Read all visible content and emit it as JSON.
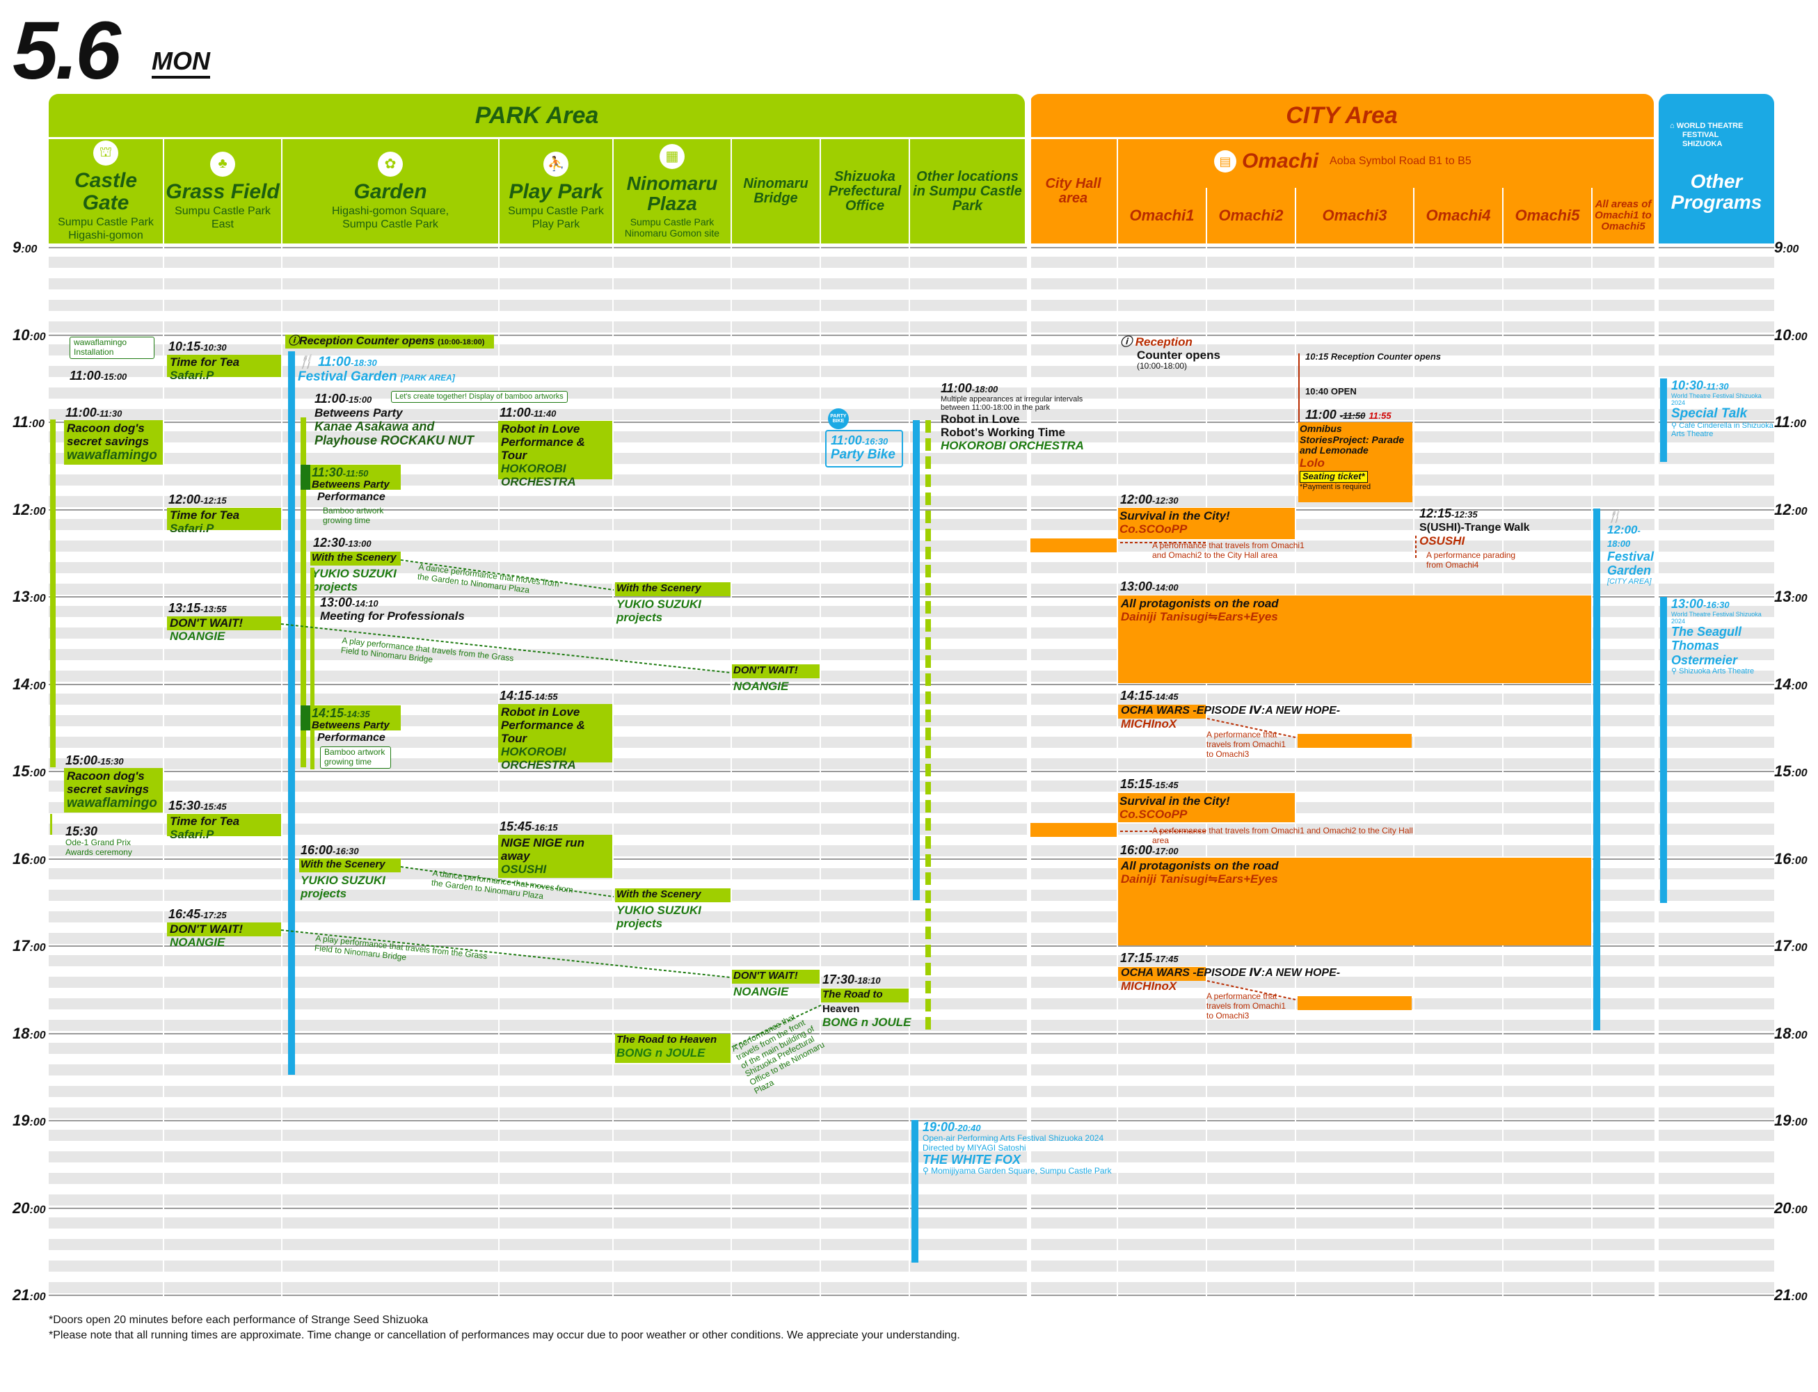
{
  "date": {
    "day": "5.6",
    "dow": "MON"
  },
  "areas": {
    "park": "PARK Area",
    "city": "CITY Area",
    "other": "Other Programs"
  },
  "logo": {
    "line1": "WORLD THEATRE",
    "line2": "FESTIVAL",
    "line3": "SHIZUOKA"
  },
  "columns": {
    "castle_gate": {
      "name": "Castle Gate",
      "sub1": "Sumpu Castle Park",
      "sub2": "Higashi-gomon"
    },
    "grass_field": {
      "name": "Grass Field",
      "sub1": "Sumpu Castle Park",
      "sub2": "East"
    },
    "garden": {
      "name": "Garden",
      "sub1": "Higashi-gomon Square,",
      "sub2": "Sumpu Castle Park"
    },
    "play_park": {
      "name": "Play Park",
      "sub1": "Sumpu Castle Park",
      "sub2": "Play Park"
    },
    "ninomaru_plaza": {
      "name": "Ninomaru Plaza",
      "sub1": "Sumpu Castle Park",
      "sub2": "Ninomaru Gomon site"
    },
    "ninomaru_bridge": {
      "name": "Ninomaru Bridge"
    },
    "pref_office": {
      "name": "Shizuoka Prefectural Office"
    },
    "other_locations": {
      "name": "Other locations in Sumpu Castle Park"
    },
    "city_hall": {
      "name": "City Hall area"
    },
    "omachi": {
      "name": "Omachi",
      "sub": "Aoba Symbol Road B1 to B5"
    },
    "omachi1": "Omachi1",
    "omachi2": "Omachi2",
    "omachi3": "Omachi3",
    "omachi4": "Omachi4",
    "omachi5": "Omachi5",
    "omachi_all": "All areas of Omachi1 to Omachi5"
  },
  "hours": [
    "9:00",
    "10:00",
    "11:00",
    "12:00",
    "13:00",
    "14:00",
    "15:00",
    "16:00",
    "17:00",
    "18:00",
    "19:00",
    "20:00",
    "21:00"
  ],
  "events": {
    "cg1": {
      "time": "11:00",
      "end": "-15:00",
      "note": "wawaflamingo Installation"
    },
    "cg2": {
      "time": "11:00",
      "end": "-11:30",
      "title": "Racoon dog's secret savings",
      "company": "wawaflamingo"
    },
    "cg3": {
      "time": "15:00",
      "end": "-15:30",
      "title": "Racoon dog's secret savings",
      "company": "wawaflamingo"
    },
    "cg4": {
      "time": "15:30",
      "note": "Ode-1 Grand Prix Awards ceremony"
    },
    "gf1": {
      "time": "10:15",
      "end": "-10:30",
      "title": "Time for Tea",
      "company": "Safari.P"
    },
    "gf2": {
      "time": "12:00",
      "end": "-12:15",
      "title": "Time for Tea",
      "company": "Safari.P"
    },
    "gf3": {
      "time": "13:15",
      "end": "-13:55",
      "title": "DON'T WAIT!",
      "company": "NOANGIE"
    },
    "gf4": {
      "time": "15:30",
      "end": "-15:45",
      "title": "Time for Tea",
      "company": "Safari.P"
    },
    "gf5": {
      "time": "16:45",
      "end": "-17:25",
      "title": "DON'T WAIT!",
      "company": "NOANGIE"
    },
    "gd_reception": {
      "title": "Reception Counter opens",
      "hours": "(10:00-18:00)"
    },
    "gd_festival": {
      "time": "11:00",
      "end": "-18:30",
      "title": "Festival Garden",
      "tag": "[PARK AREA]"
    },
    "gd_betweens": {
      "time": "11:00",
      "end": "-15:00",
      "note": "Let's create together! Display of bamboo artworks",
      "title": "Betweens Party",
      "company": "Kanae Asakawa and Playhouse ROCKAKU NUT"
    },
    "gd_perf1": {
      "time": "11:30",
      "end": "-11:50",
      "title": "Betweens Party",
      "sub": "Performance",
      "note": "Bamboo artwork growing time"
    },
    "gd_scenery1": {
      "time": "12:30",
      "end": "-13:00",
      "title": "With the Scenery",
      "company": "YUKIO SUZUKI projects"
    },
    "gd_meeting": {
      "time": "13:00",
      "end": "-14:10",
      "title": "Meeting for Professionals"
    },
    "gd_perf2": {
      "time": "14:15",
      "end": "-14:35",
      "title": "Betweens Party",
      "sub": "Performance",
      "note": "Bamboo artwork growing time"
    },
    "gd_scenery2": {
      "time": "16:00",
      "end": "-16:30",
      "title": "With the Scenery",
      "company": "YUKIO SUZUKI projects"
    },
    "pp1": {
      "time": "11:00",
      "end": "-11:40",
      "title": "Robot in Love Performance & Tour",
      "company": "HOKOROBI ORCHESTRA"
    },
    "pp2": {
      "time": "14:15",
      "end": "-14:55",
      "title": "Robot in Love Performance & Tour",
      "company": "HOKOROBI ORCHESTRA"
    },
    "pp3": {
      "time": "15:45",
      "end": "-16:15",
      "title": "NIGE NIGE run away",
      "company": "OSUSHI"
    },
    "np1": {
      "title": "With the Scenery",
      "company": "YUKIO SUZUKI projects"
    },
    "np2": {
      "title": "With the Scenery",
      "company": "YUKIO SUZUKI projects"
    },
    "np3": {
      "title": "The Road to Heaven",
      "company": "BONG n JOULE"
    },
    "nb1": {
      "title": "DON'T WAIT!",
      "company": "NOANGIE"
    },
    "nb2": {
      "title": "DON'T WAIT!",
      "company": "NOANGIE"
    },
    "po_party": {
      "badge": "PARTY BIKE",
      "time": "11:00",
      "end": "-16:30",
      "title": "Party Bike"
    },
    "po_road": {
      "time": "17:30",
      "end": "-18:10",
      "title": "The Road to",
      "title2": "Heaven",
      "company": "BONG n JOULE"
    },
    "ol_robot": {
      "time": "11:00",
      "end": "-18:00",
      "note": "Multiple appearances at irregular intervals between 11:00-18:00 in the park",
      "title": "Robot in Love",
      "title2": "Robot's Working Time",
      "company": "HOKOROBI ORCHESTRA"
    },
    "ol_fox": {
      "time": "19:00",
      "end": "-20:40",
      "note1": "Open-air Performing Arts Festival Shizuoka 2024",
      "note2": "Directed by MIYAGI Satoshi",
      "title": "THE WHITE FOX",
      "place": "Momijiyama Garden Square, Sumpu Castle Park"
    },
    "om_reception": {
      "title": "Reception",
      "title2": "Counter opens",
      "hours": "(10:00-18:00)"
    },
    "om3_1015": {
      "text": "10:15 Reception Counter opens"
    },
    "om3_1040": {
      "text": "10:40 OPEN"
    },
    "om3_omni": {
      "time": "11:00",
      "old_end": "-11:50",
      "new_end": "11:55",
      "title": "Omnibus StoriesProject: Parade and Lemonade",
      "company": "Lolo",
      "ticket": "Seating ticket*",
      "note": "*Payment is required"
    },
    "om_surv1": {
      "time": "12:00",
      "end": "-12:30",
      "title": "Survival in the City!",
      "company": "Co.SCOoPP",
      "note": "A performance that travels from Omachi1 and Omachi2 to the City Hall area"
    },
    "om_ushi": {
      "time": "12:15",
      "end": "-12:35",
      "title": "S(USHI)-Trange Walk",
      "company": "OSUSHI",
      "note": "A performance parading from Omachi4"
    },
    "om_prot1": {
      "time": "13:00",
      "end": "-14:00",
      "title": "All protagonists on the road",
      "company": "Dainiji Tanisugi⇋Ears+Eyes"
    },
    "om_ocha1": {
      "time": "14:15",
      "end": "-14:45",
      "title": "OCHA WARS -EPISODE Ⅳ:A NEW HOPE-",
      "company": "MICHInoX",
      "note": "A performance that travels from Omachi1 to Omachi3"
    },
    "om_surv2": {
      "time": "15:15",
      "end": "-15:45",
      "title": "Survival in the City!",
      "company": "Co.SCOoPP",
      "note": "A performance that travels from Omachi1 and Omachi2 to the City Hall area"
    },
    "om_prot2": {
      "time": "16:00",
      "end": "-17:00",
      "title": "All protagonists on the road",
      "company": "Dainiji Tanisugi⇋Ears+Eyes"
    },
    "om_ocha2": {
      "time": "17:15",
      "end": "-17:45",
      "title": "OCHA WARS -EPISODE Ⅳ:A NEW HOPE-",
      "company": "MICHInoX",
      "note": "A performance that travels from Omachi1 to Omachi3"
    },
    "oa_fest": {
      "time": "12:00",
      "end": "-18:00",
      "title": "Festival Garden",
      "tag": "[CITY AREA]"
    },
    "op_talk": {
      "time": "10:30",
      "end": "-11:30",
      "note": "World Theatre Festival Shizuoka 2024",
      "title": "Special Talk",
      "place": "Café Cinderella in Shizuoka Arts Theatre"
    },
    "op_seagull": {
      "time": "13:00",
      "end": "-16:30",
      "note": "World Theatre Festival Shizuoka 2024",
      "title": "The Seagull",
      "title2": "Thomas Ostermeier",
      "place": "Shizuoka Arts Theatre"
    }
  },
  "arrows": {
    "a1": "A dance performance that moves from the Garden to Ninomaru Plaza",
    "a2": "A play performance that travels from the Grass Field to Ninomaru Bridge",
    "a3": "A dance performance that moves from the Garden to Ninomaru Plaza",
    "a4": "A play performance that travels from the Grass Field to Ninomaru Bridge",
    "a5": "A performance that travels from the front of the main building of Shizuoka Prefectural Office to the Ninomaru Plaza"
  },
  "footer": {
    "line1": "*Doors open 20 minutes before each performance of Strange Seed Shizuoka",
    "line2": "*Please note that all running times are approximate. Time change or cancellation of performances may occur due to poor weather or other conditions. We appreciate your understanding."
  },
  "colors": {
    "park": "#9fcf00",
    "park_dark": "#1d7a10",
    "city": "#ff9900",
    "city_text": "#b92c00",
    "other": "#1ba9e4"
  }
}
